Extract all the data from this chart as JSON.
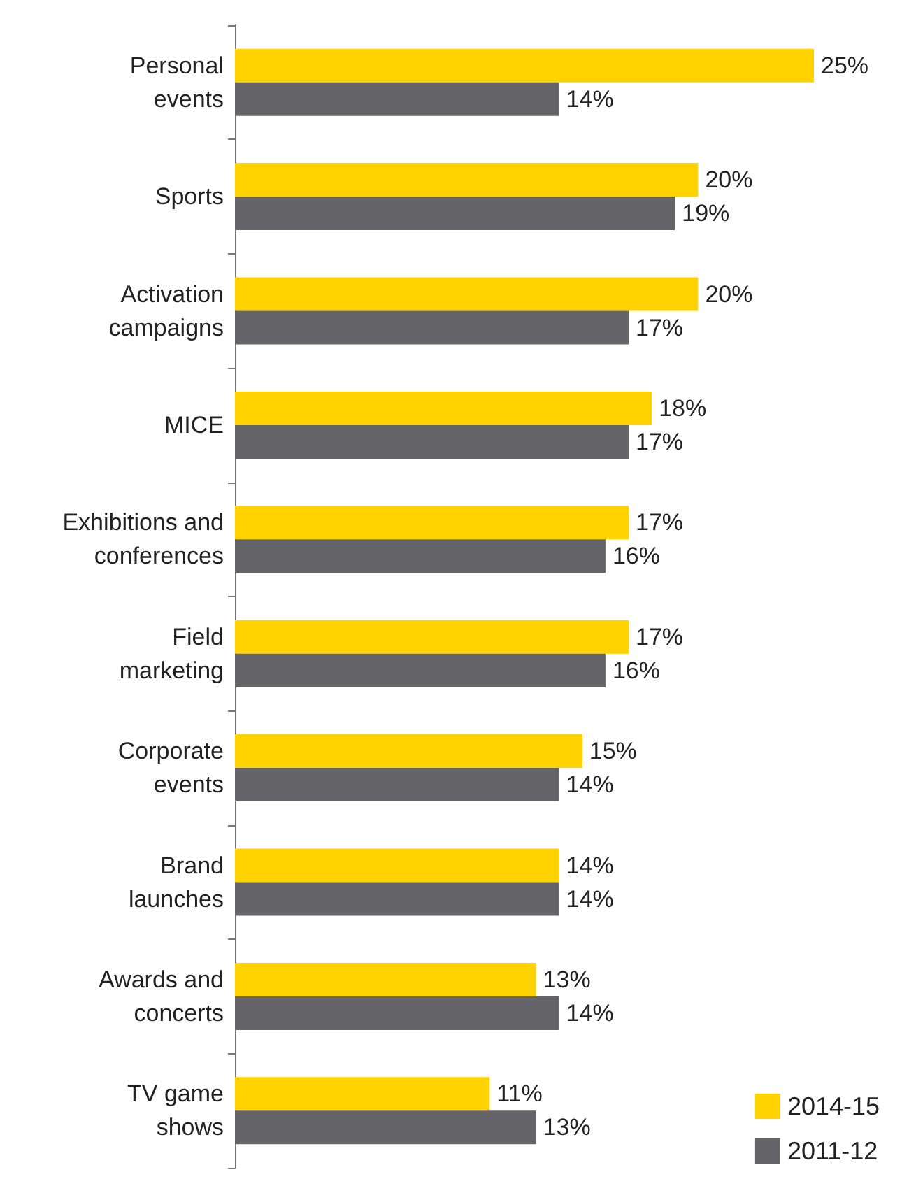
{
  "chart_data": {
    "type": "bar",
    "orientation": "horizontal",
    "categories": [
      "Personal\nevents",
      "Sports",
      "Activation\ncampaigns",
      "MICE",
      "Exhibitions and\nconferences",
      "Field\nmarketing",
      "Corporate\nevents",
      "Brand\nlaunches",
      "Awards and\nconcerts",
      "TV game\nshows"
    ],
    "series": [
      {
        "name": "2014-15",
        "color": "#ffd200",
        "values": [
          25,
          20,
          20,
          18,
          17,
          17,
          15,
          14,
          13,
          11
        ],
        "value_labels": [
          "25%",
          "20%",
          "20%",
          "18%",
          "17%",
          "17%",
          "15%",
          "14%",
          "13%",
          "11%"
        ]
      },
      {
        "name": "2011-12",
        "color": "#646469",
        "values": [
          14,
          19,
          17,
          17,
          16,
          16,
          14,
          14,
          14,
          13
        ],
        "value_labels": [
          "14%",
          "19%",
          "17%",
          "17%",
          "16%",
          "16%",
          "14%",
          "14%",
          "14%",
          "13%"
        ]
      }
    ],
    "legend": "bottom right",
    "tick_labels": "y",
    "grid": false
  }
}
